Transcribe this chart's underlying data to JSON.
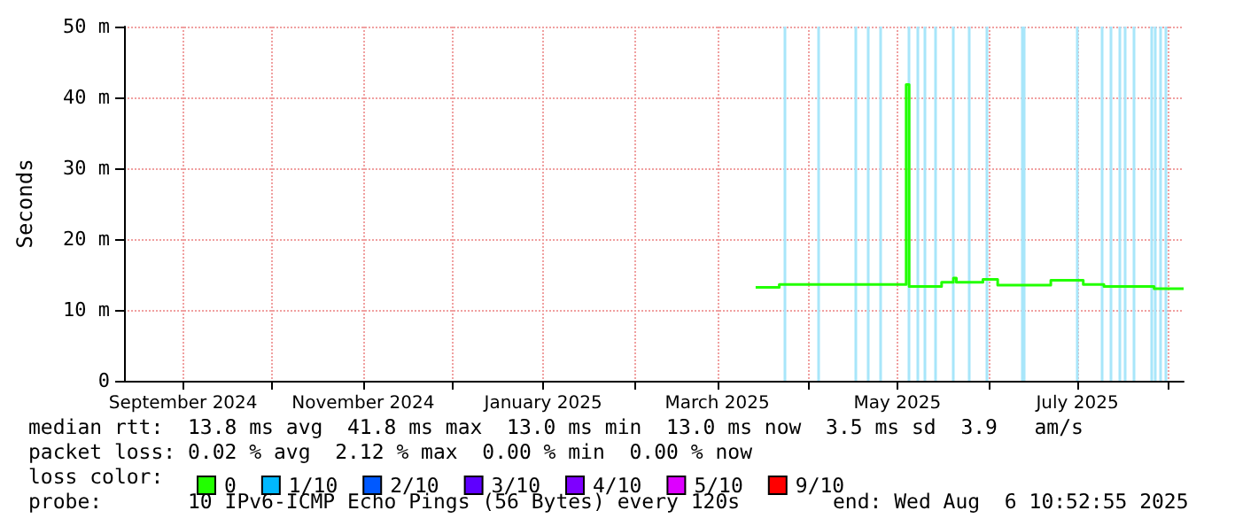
{
  "chart_data": {
    "type": "step",
    "ylabel": "Seconds",
    "xlim": [
      "2024-08-12",
      "2025-08-06"
    ],
    "xticks": [
      {
        "value": "2024-09-01",
        "label": "September 2024"
      },
      {
        "value": "2024-10-01",
        "label": null
      },
      {
        "value": "2024-11-01",
        "label": "November 2024"
      },
      {
        "value": "2024-12-01",
        "label": null
      },
      {
        "value": "2025-01-01",
        "label": "January 2025"
      },
      {
        "value": "2025-02-01",
        "label": null
      },
      {
        "value": "2025-03-01",
        "label": "March 2025"
      },
      {
        "value": "2025-04-01",
        "label": null
      },
      {
        "value": "2025-05-01",
        "label": "May 2025"
      },
      {
        "value": "2025-06-01",
        "label": null
      },
      {
        "value": "2025-07-01",
        "label": "July 2025"
      },
      {
        "value": "2025-08-01",
        "label": null
      }
    ],
    "ylim": [
      0,
      50
    ],
    "yticks": [
      0,
      {
        "value": 10,
        "label": "10 m"
      },
      {
        "value": 20,
        "label": "20 m"
      },
      {
        "value": 30,
        "label": "30 m"
      },
      {
        "value": 40,
        "label": "40 m"
      },
      {
        "value": 50,
        "label": "50 m"
      }
    ],
    "grid": true,
    "legend": "bottom",
    "legend_title": "loss color:",
    "series": [
      {
        "name": "0",
        "color": "#22ff00",
        "x": [
          "2025-03-14",
          "2025-03-22",
          "2025-05-04",
          "2025-05-05",
          "2025-05-16",
          "2025-05-20",
          "2025-05-21",
          "2025-05-30",
          "2025-06-04",
          "2025-06-22",
          "2025-07-03",
          "2025-07-10",
          "2025-07-27",
          "2025-08-06"
        ],
        "values": [
          13.2,
          13.6,
          41.8,
          13.3,
          13.9,
          14.5,
          13.9,
          14.3,
          13.5,
          14.2,
          13.6,
          13.3,
          13.0,
          13.0
        ]
      },
      {
        "name": "1/10",
        "color": "#00b8ff"
      },
      {
        "name": "2/10",
        "color": "#0059ff"
      },
      {
        "name": "3/10",
        "color": "#5e00ff"
      },
      {
        "name": "4/10",
        "color": "#7e00ff"
      },
      {
        "name": "5/10",
        "color": "#dd00ff"
      },
      {
        "name": "9/10",
        "color": "#ff0000"
      }
    ],
    "ref_lines": [
      {
        "axis": "x",
        "value": "2025-03-24",
        "color": "#a8e6fa"
      },
      {
        "axis": "x",
        "value": "2025-04-04",
        "color": "#a8e6fa"
      },
      {
        "axis": "x",
        "value": "2025-04-17",
        "color": "#a8e6fa"
      },
      {
        "axis": "x",
        "value": "2025-04-21",
        "color": "#a8e6fa"
      },
      {
        "axis": "x",
        "value": "2025-04-25",
        "color": "#a8e6fa"
      },
      {
        "axis": "x",
        "value": "2025-05-05",
        "color": "#a8e6fa"
      },
      {
        "axis": "x",
        "value": "2025-05-08",
        "color": "#a8e6fa"
      },
      {
        "axis": "x",
        "value": "2025-05-10",
        "color": "#a8e6fa"
      },
      {
        "axis": "x",
        "value": "2025-05-14",
        "color": "#a8e6fa"
      },
      {
        "axis": "x",
        "value": "2025-05-20",
        "color": "#a8e6fa"
      },
      {
        "axis": "x",
        "value": "2025-05-25",
        "color": "#a8e6fa"
      },
      {
        "axis": "x",
        "value": "2025-05-31",
        "color": "#a8e6fa"
      },
      {
        "axis": "x",
        "value": "2025-06-12",
        "color": "#a8e6fa"
      },
      {
        "axis": "x",
        "value": "2025-06-13",
        "color": "#a8e6fa"
      },
      {
        "axis": "x",
        "value": "2025-07-01",
        "color": "#a8e6fa"
      },
      {
        "axis": "x",
        "value": "2025-07-09",
        "color": "#a8e6fa"
      },
      {
        "axis": "x",
        "value": "2025-07-12",
        "color": "#a8e6fa"
      },
      {
        "axis": "x",
        "value": "2025-07-15",
        "color": "#a8e6fa"
      },
      {
        "axis": "x",
        "value": "2025-07-17",
        "color": "#a8e6fa"
      },
      {
        "axis": "x",
        "value": "2025-07-20",
        "color": "#a8e6fa"
      },
      {
        "axis": "x",
        "value": "2025-07-26",
        "color": "#a8e6fa"
      },
      {
        "axis": "x",
        "value": "2025-07-27",
        "color": "#a8e6fa"
      },
      {
        "axis": "x",
        "value": "2025-07-29",
        "color": "#a8e6fa"
      },
      {
        "axis": "x",
        "value": "2025-07-31",
        "color": "#a8e6fa"
      }
    ],
    "annotations": [
      "median rtt:  13.8 ms avg  41.8 ms max  13.0 ms min  13.0 ms now  3.5 ms sd  3.9   am/s",
      "packet loss: 0.02 % avg  2.12 % max  0.00 % min  0.00 % now",
      "probe:       10 IPv6-ICMP Echo Pings (56 Bytes) every 120s",
      "end: Wed Aug  6 10:52:55 2025"
    ]
  }
}
